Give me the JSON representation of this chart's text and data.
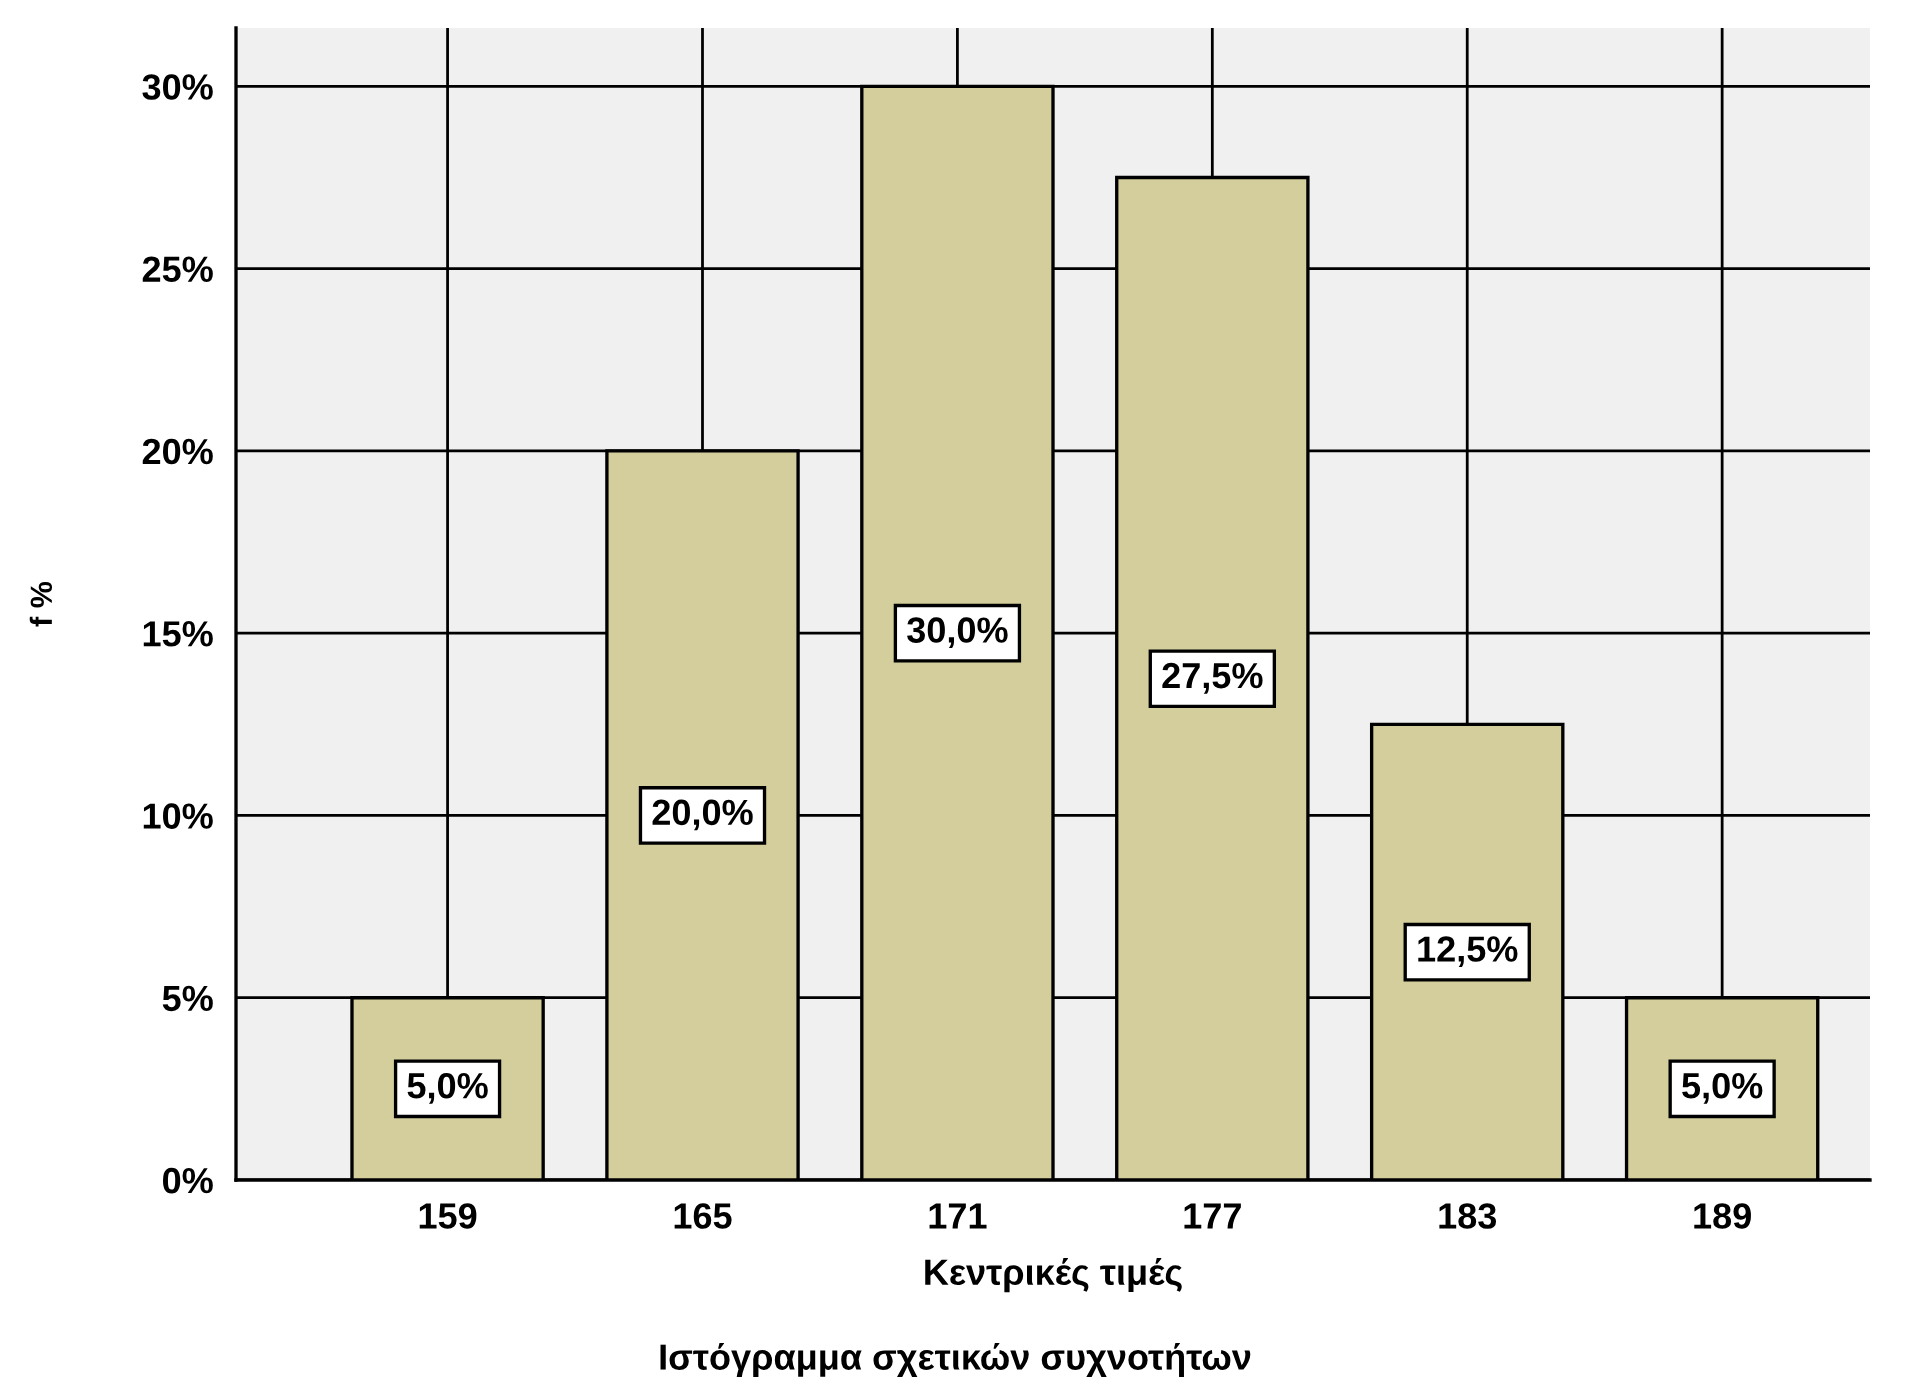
{
  "chart_data": {
    "type": "bar",
    "title": "Ιστόγραμμα σχετικών συχνοτήτων",
    "xlabel": "Κεντρικές τιμές",
    "ylabel": "f %",
    "categories": [
      "159",
      "165",
      "171",
      "177",
      "183",
      "189"
    ],
    "values": [
      5,
      20,
      30,
      27.5,
      12.5,
      5
    ],
    "value_labels": [
      "5,0%",
      "20,0%",
      "30,0%",
      "27,5%",
      "12,5%",
      "5,0%"
    ],
    "color": "#d3ce9b",
    "ylim": [
      0,
      31.6
    ],
    "yticks": [
      {
        "value": 0,
        "label": "0%"
      },
      {
        "value": 5,
        "label": "5%"
      },
      {
        "value": 10,
        "label": "10%"
      },
      {
        "value": 15,
        "label": "15%"
      },
      {
        "value": 20,
        "label": "20%"
      },
      {
        "value": 25,
        "label": "25%"
      },
      {
        "value": 30,
        "label": "30%"
      }
    ],
    "grid": true,
    "legend": false
  }
}
